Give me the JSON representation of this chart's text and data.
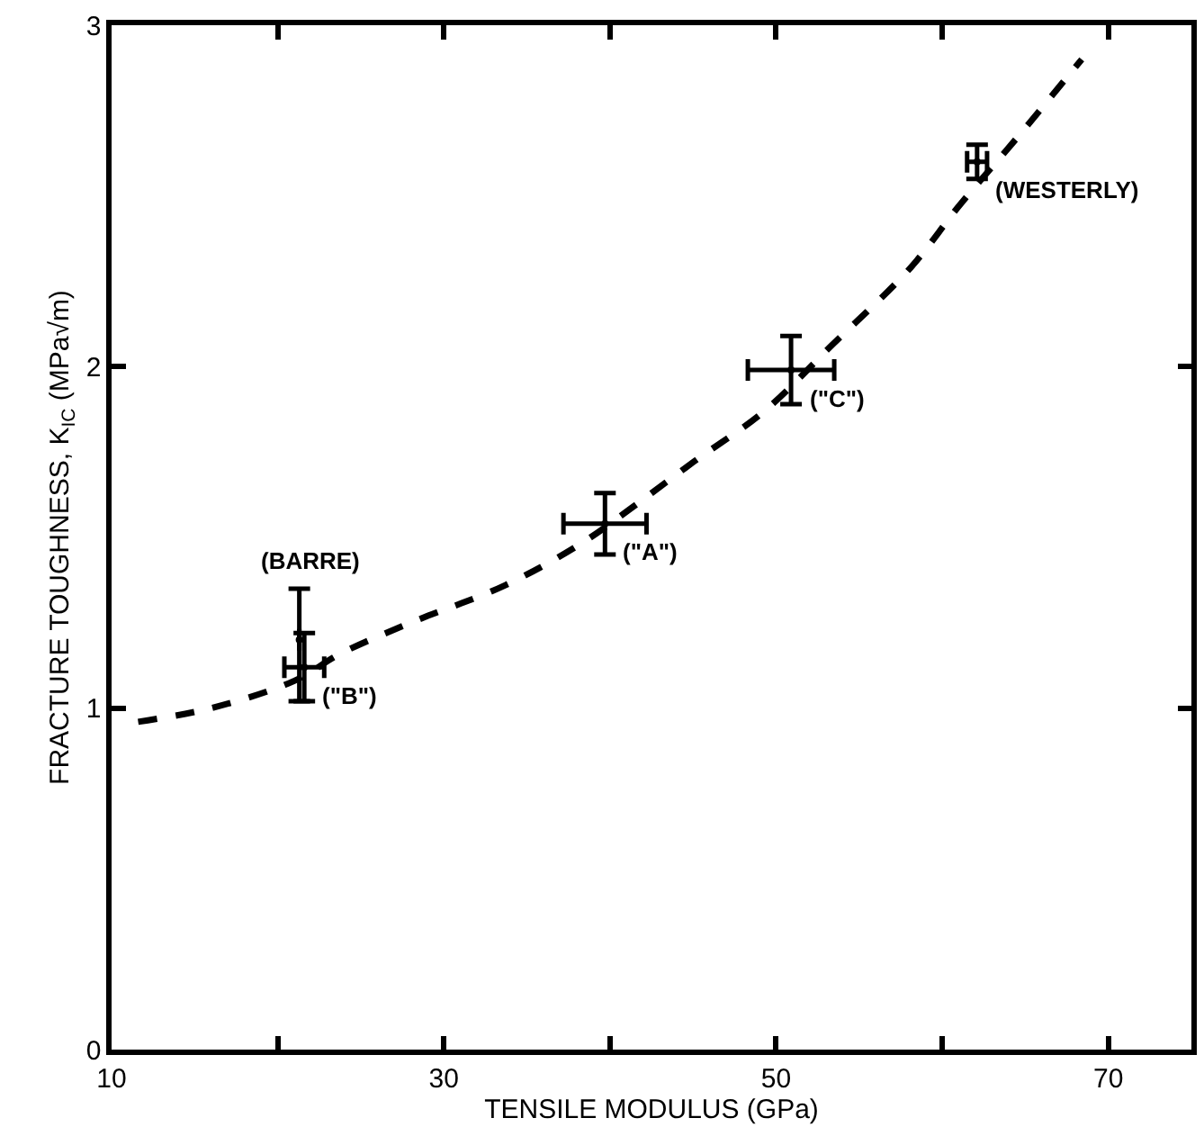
{
  "chart_data": {
    "type": "scatter",
    "xlabel": "TENSILE MODULUS (GPa)",
    "ylabel": "FRACTURE TOUGHNESS, K$_{IC}$ (MPa√m)",
    "xlim": [
      10,
      75
    ],
    "xticks": [
      10,
      {
        "value": 20,
        "label": null
      },
      30,
      {
        "value": 40,
        "label": null
      },
      50,
      {
        "value": 60,
        "label": null
      },
      70
    ],
    "ylim": [
      0,
      3
    ],
    "yticks": [
      0,
      1,
      2,
      3
    ],
    "series": [
      {
        "color": "#000000",
        "marker": "circle",
        "x": [
          21.3,
          21.6,
          39.7,
          50.9,
          62.1
        ],
        "values": [
          1.2,
          1.12,
          1.54,
          1.99,
          2.6
        ],
        "errors": [
          [
            1.02,
            1.35
          ],
          0.1,
          0.09,
          0.1,
          0.05
        ],
        "xerrors": [
          null,
          1.2,
          2.5,
          2.6,
          0.6
        ]
      },
      {
        "type": "line",
        "color": "#000000",
        "marker": "none",
        "line_style": "dashed",
        "x": [
          11.6,
          16,
          21,
          23.8,
          28,
          33.7,
          38.2,
          41.4,
          45,
          49.3,
          53.3,
          58.1,
          61,
          64.5,
          68.4
        ],
        "values": [
          0.96,
          1.0,
          1.08,
          1.16,
          1.25,
          1.36,
          1.48,
          1.59,
          1.72,
          1.87,
          2.06,
          2.29,
          2.47,
          2.67,
          2.9
        ]
      }
    ],
    "annotations": [
      {
        "text": "(BARRE)",
        "x": 21.3,
        "y": 1.35
      },
      {
        "text": "(\"B\")",
        "x": 21.6,
        "y": 1.12
      },
      {
        "text": "(\"A\")",
        "x": 39.7,
        "y": 1.54
      },
      {
        "text": "(\"C\")",
        "x": 50.9,
        "y": 1.99
      },
      {
        "text": "(WESTERLY)",
        "x": 62.1,
        "y": 2.6
      }
    ]
  }
}
